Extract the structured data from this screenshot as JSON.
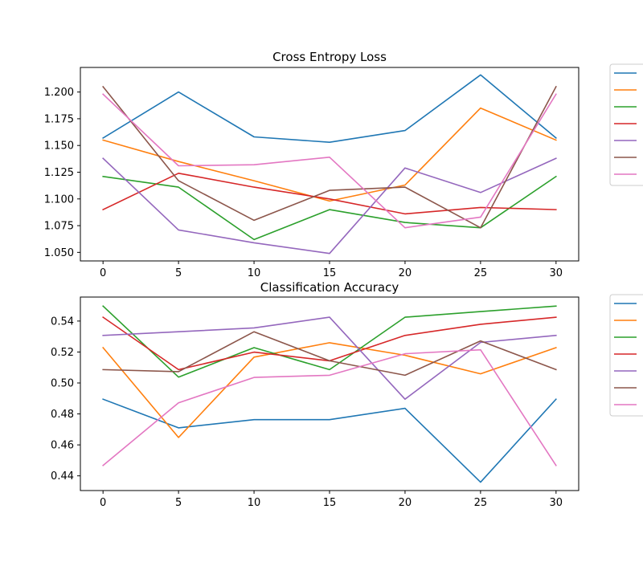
{
  "chart_data": [
    {
      "type": "line",
      "title": "Cross Entropy Loss",
      "xlabel": "",
      "ylabel": "",
      "x": [
        0,
        5,
        10,
        15,
        20,
        25,
        30
      ],
      "xlim": [
        -1.5,
        31.5
      ],
      "ylim": [
        1.042,
        1.223
      ],
      "xticks": [
        0,
        5,
        10,
        15,
        20,
        25,
        30
      ],
      "yticks": [
        1.05,
        1.075,
        1.1,
        1.125,
        1.15,
        1.175,
        1.2
      ],
      "ytick_labels": [
        "1.050",
        "1.075",
        "1.100",
        "1.125",
        "1.150",
        "1.175",
        "1.200"
      ],
      "grid": false,
      "legend": "outside-right (entries unlabeled)",
      "series": [
        {
          "color": "#1f77b4",
          "values": [
            1.157,
            1.2,
            1.158,
            1.153,
            1.164,
            1.216,
            1.157
          ]
        },
        {
          "color": "#ff7f0e",
          "values": [
            1.155,
            1.135,
            1.117,
            1.098,
            1.113,
            1.185,
            1.155
          ]
        },
        {
          "color": "#2ca02c",
          "values": [
            1.121,
            1.111,
            1.062,
            1.09,
            1.078,
            1.073,
            1.121
          ]
        },
        {
          "color": "#d62728",
          "values": [
            1.09,
            1.124,
            1.111,
            1.1,
            1.086,
            1.092,
            1.09
          ]
        },
        {
          "color": "#9467bd",
          "values": [
            1.138,
            1.071,
            1.059,
            1.049,
            1.129,
            1.106,
            1.138
          ]
        },
        {
          "color": "#8c564b",
          "values": [
            1.205,
            1.117,
            1.08,
            1.108,
            1.111,
            1.073,
            1.205
          ]
        },
        {
          "color": "#e377c2",
          "values": [
            1.198,
            1.131,
            1.132,
            1.139,
            1.073,
            1.083,
            1.198
          ]
        }
      ]
    },
    {
      "type": "line",
      "title": "Classification Accuracy",
      "xlabel": "",
      "ylabel": "",
      "x": [
        0,
        5,
        10,
        15,
        20,
        25,
        30
      ],
      "xlim": [
        -1.5,
        31.5
      ],
      "ylim": [
        0.4305,
        0.5555
      ],
      "xticks": [
        0,
        5,
        10,
        15,
        20,
        25,
        30
      ],
      "yticks": [
        0.44,
        0.46,
        0.48,
        0.5,
        0.52,
        0.54
      ],
      "ytick_labels": [
        "0.44",
        "0.46",
        "0.48",
        "0.50",
        "0.52",
        "0.54"
      ],
      "grid": false,
      "legend": "outside-right (entries unlabeled)",
      "series": [
        {
          "color": "#1f77b4",
          "values": [
            0.4895,
            0.471,
            0.4763,
            0.4763,
            0.4836,
            0.4359,
            0.4895
          ]
        },
        {
          "color": "#ff7f0e",
          "values": [
            0.5228,
            0.4648,
            0.5167,
            0.526,
            0.5179,
            0.5059,
            0.5228
          ]
        },
        {
          "color": "#2ca02c",
          "values": [
            0.5497,
            0.5038,
            0.5228,
            0.5086,
            0.5425,
            0.5461,
            0.5497
          ]
        },
        {
          "color": "#d62728",
          "values": [
            0.5425,
            0.5086,
            0.5199,
            0.5143,
            0.5307,
            0.5379,
            0.5425
          ]
        },
        {
          "color": "#9467bd",
          "values": [
            0.5307,
            0.5331,
            0.5356,
            0.5425,
            0.4895,
            0.5262,
            0.5307
          ]
        },
        {
          "color": "#8c564b",
          "values": [
            0.5086,
            0.5073,
            0.5331,
            0.5143,
            0.505,
            0.5272,
            0.5086
          ]
        },
        {
          "color": "#e377c2",
          "values": [
            0.4467,
            0.4872,
            0.5036,
            0.505,
            0.5189,
            0.5214,
            0.4467
          ]
        }
      ]
    }
  ]
}
